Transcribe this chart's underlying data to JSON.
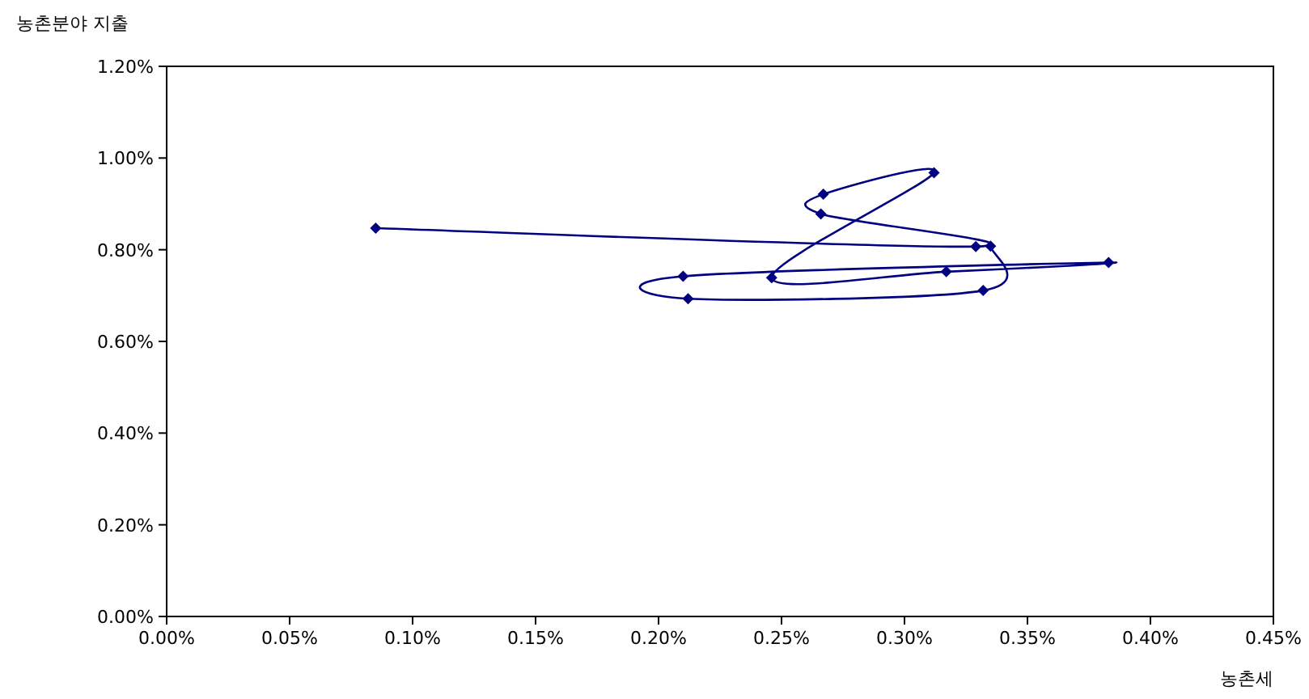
{
  "chart_data": {
    "type": "line",
    "xlabel": "농촌세",
    "ylabel": "농촌분야 지출",
    "xlim": [
      0,
      0.45
    ],
    "ylim": [
      0,
      1.2
    ],
    "xticks": [
      {
        "value": 0,
        "label": "0.00%"
      },
      {
        "value": 0.05,
        "label": "0.05%"
      },
      {
        "value": 0.1,
        "label": "0.10%"
      },
      {
        "value": 0.15,
        "label": "0.15%"
      },
      {
        "value": 0.2,
        "label": "0.20%"
      },
      {
        "value": 0.25,
        "label": "0.25%"
      },
      {
        "value": 0.3,
        "label": "0.30%"
      },
      {
        "value": 0.35,
        "label": "0.35%"
      },
      {
        "value": 0.4,
        "label": "0.40%"
      },
      {
        "value": 0.45,
        "label": "0.45%"
      }
    ],
    "yticks": [
      {
        "value": 0,
        "label": "0.00%"
      },
      {
        "value": 0.2,
        "label": "0.20%"
      },
      {
        "value": 0.4,
        "label": "0.40%"
      },
      {
        "value": 0.6,
        "label": "0.60%"
      },
      {
        "value": 0.8,
        "label": "0.80%"
      },
      {
        "value": 1.0,
        "label": "1.00%"
      },
      {
        "value": 1.2,
        "label": "1.20%"
      }
    ],
    "series": [
      {
        "color": "#000080",
        "x": [
          0.085,
          0.329,
          0.266,
          0.267,
          0.312,
          0.246,
          0.317,
          0.383,
          0.21,
          0.212,
          0.332,
          0.335
        ],
        "values": [
          0.847,
          0.807,
          0.878,
          0.921,
          0.968,
          0.739,
          0.752,
          0.772,
          0.742,
          0.693,
          0.711,
          0.808
        ]
      }
    ],
    "marker": "diamond",
    "line_style": "solid",
    "grid": false
  }
}
